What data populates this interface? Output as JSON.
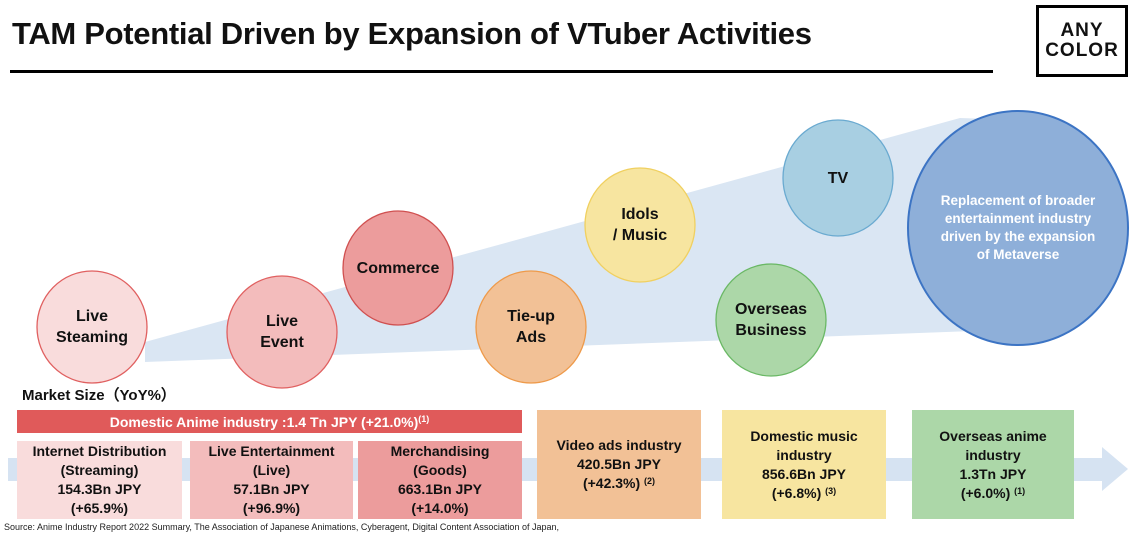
{
  "title": "TAM Potential Driven by Expansion of VTuber Activities",
  "logo": {
    "line1": "ANY",
    "line2": "COLOR"
  },
  "circles": [
    {
      "label": "Live\nSteaming",
      "color": "#f9dcdc",
      "border": "#e06060"
    },
    {
      "label": "Live\nEvent",
      "color": "#f3bcbc",
      "border": "#e06060"
    },
    {
      "label": "Commerce",
      "color": "#ec9c9c",
      "border": "#d05050"
    },
    {
      "label": "Tie-up\nAds",
      "color": "#f2c196",
      "border": "#ee9a4a"
    },
    {
      "label": "Idols\n/ Music",
      "color": "#f7e5a0",
      "border": "#f0d060"
    },
    {
      "label": "Overseas\nBusiness",
      "color": "#acd7a8",
      "border": "#6ab865"
    },
    {
      "label": "TV",
      "color": "#a8cfe2",
      "border": "#6aaad0"
    },
    {
      "label": "Replacement of  broader\nentertainment industry\ndriven by the expansion\nof Metaverse",
      "color": "#8eafd9",
      "border": "#3c74c4"
    }
  ],
  "market_size_label": "Market Size（YoY%）",
  "anime_header": {
    "text": "Domestic Anime industry :1.4 Tn JPY (+21.0%)",
    "note": "(1)"
  },
  "boxes": [
    {
      "name": "Internet Distribution",
      "sub": "(Streaming)",
      "value": "154.3Bn JPY",
      "yoy": "(+65.9%)",
      "note": "",
      "color": "#f9dcdc"
    },
    {
      "name": "Live Entertainment",
      "sub": "(Live)",
      "value": "57.1Bn JPY",
      "yoy": "(+96.9%)",
      "note": "",
      "color": "#f3bcbc"
    },
    {
      "name": "Merchandising",
      "sub": "(Goods)",
      "value": "663.1Bn JPY",
      "yoy": "(+14.0%)",
      "note": "",
      "color": "#ec9c9c"
    },
    {
      "name": "Video ads industry",
      "sub": "",
      "value": "420.5Bn JPY",
      "yoy": "(+42.3%)",
      "note": "(2)",
      "color": "#f2c196"
    },
    {
      "name": "Domestic music",
      "sub": "industry",
      "value": "856.6Bn JPY",
      "yoy": "(+6.8%)",
      "note": "(3)",
      "color": "#f7e5a0"
    },
    {
      "name": "Overseas anime",
      "sub": "industry",
      "value": "1.3Tn JPY",
      "yoy": "(+6.0%)",
      "note": "(1)",
      "color": "#acd7a8"
    }
  ],
  "colors": {
    "wedge": "#dae6f3",
    "arrow": "#d6e3f2",
    "anime_header": "#e05a5a"
  },
  "source": "Source: Anime Industry Report 2022 Summary, The Association of Japanese Animations, Cyberagent, Digital Content Association of Japan,"
}
